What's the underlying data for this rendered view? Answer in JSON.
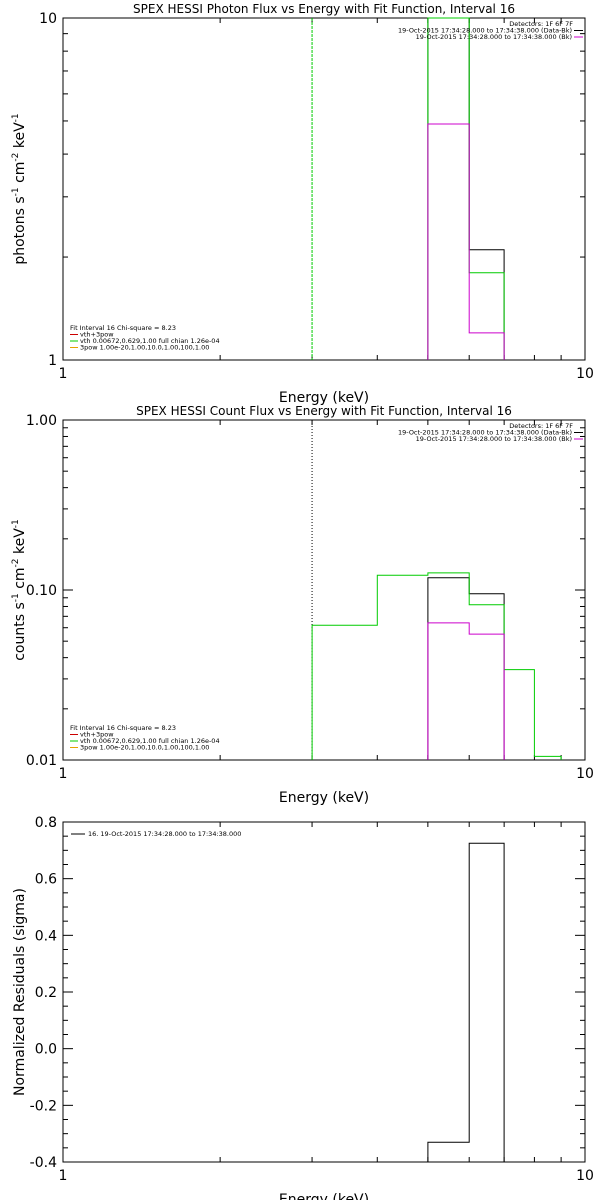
{
  "colors": {
    "black": "#000000",
    "magenta": "#cc00cc",
    "green": "#00cc00",
    "orange": "#e6a000",
    "red": "#cc0000"
  },
  "chart_data": [
    {
      "type": "line",
      "title": "SPEX HESSI Photon Flux vs Energy with Fit Function, Interval 16",
      "xlabel": "Energy (keV)",
      "ylabel": {
        "base": "photons s",
        "sup1": "-1",
        "mid1": " cm",
        "sup2": "-2",
        "mid2": " keV",
        "sup3": "-1"
      },
      "xscale": "log",
      "yscale": "log",
      "xlim": [
        1,
        10
      ],
      "ylim": [
        1,
        10
      ],
      "xticklabels": [
        {
          "v": 1,
          "t": "1"
        },
        {
          "v": 10,
          "t": "10"
        }
      ],
      "yticklabels": [
        {
          "v": 1,
          "t": "1"
        },
        {
          "v": 10,
          "t": "10"
        }
      ],
      "legend_topright": {
        "header": "Detectors: 1F 6F 7F",
        "entries": [
          {
            "text": "19-Oct-2015 17:34:28.000 to 17:34:38.000 (Data-Bk)",
            "color": "#000000"
          },
          {
            "text": "19-Oct-2015 17:34:28.000 to 17:34:38.000 (Bk)",
            "color": "#cc00cc"
          }
        ]
      },
      "legend_bottomleft": {
        "header": "Fit Interval 16    Chi-square = 8.23",
        "entries": [
          {
            "text": "vth+3pow",
            "color": "#cc0000"
          },
          {
            "text": "vth 0.00672,0.629,1.00   full chian 1.26e-04",
            "color": "#00cc00"
          },
          {
            "text": "3pow 1.00e-20,1.00,10.0,1.00,100,1.00",
            "color": "#e6a000"
          }
        ]
      },
      "vline": {
        "x": 3.0,
        "color": "#00cc00",
        "style": "dashed"
      },
      "series": [
        {
          "color": "#000000",
          "edges": [
            5.0,
            6.0,
            7.0
          ],
          "values": [
            10.5,
            2.1
          ]
        },
        {
          "color": "#00cc00",
          "edges": [
            5.0,
            6.0,
            7.0
          ],
          "values": [
            10.0,
            1.8
          ]
        },
        {
          "color": "#cc00cc",
          "edges": [
            5.0,
            6.0,
            7.0
          ],
          "values": [
            4.9,
            1.2
          ]
        }
      ]
    },
    {
      "type": "line",
      "title": "SPEX HESSI Count Flux vs Energy with Fit Function, Interval 16",
      "xlabel": "Energy (keV)",
      "ylabel": {
        "base": "counts s",
        "sup1": "-1",
        "mid1": " cm",
        "sup2": "-2",
        "mid2": " keV",
        "sup3": "-1"
      },
      "xscale": "log",
      "yscale": "log",
      "xlim": [
        1,
        10
      ],
      "ylim": [
        0.01,
        1.0
      ],
      "xticklabels": [
        {
          "v": 1,
          "t": "1"
        },
        {
          "v": 10,
          "t": "10"
        }
      ],
      "yticklabels": [
        {
          "v": 0.01,
          "t": "0.01"
        },
        {
          "v": 0.1,
          "t": "0.10"
        },
        {
          "v": 1.0,
          "t": "1.00"
        }
      ],
      "legend_topright": {
        "header": "Detectors: 1F 6F 7F",
        "entries": [
          {
            "text": "19-Oct-2015 17:34:28.000 to 17:34:38.000 (Data-Bk)",
            "color": "#000000"
          },
          {
            "text": "19-Oct-2015 17:34:28.000 to 17:34:38.000 (Bk)",
            "color": "#cc00cc"
          }
        ]
      },
      "legend_bottomleft": {
        "header": "Fit Interval 16    Chi-square = 8.23",
        "entries": [
          {
            "text": "vth+3pow",
            "color": "#cc0000"
          },
          {
            "text": "vth 0.00672,0.629,1.00   full chian 1.26e-04",
            "color": "#00cc00"
          },
          {
            "text": "3pow 1.00e-20,1.00,10.0,1.00,100,1.00",
            "color": "#e6a000"
          }
        ]
      },
      "vline": {
        "x": 3.0,
        "color": "#000000",
        "style": "dotted"
      },
      "series": [
        {
          "color": "#000000",
          "edges": [
            5.0,
            6.0,
            7.0
          ],
          "values": [
            0.118,
            0.095
          ]
        },
        {
          "color": "#00cc00",
          "edges": [
            3.0,
            4.0,
            5.0,
            6.0,
            7.0,
            8.0,
            9.0
          ],
          "values": [
            0.062,
            0.122,
            0.126,
            0.082,
            0.034,
            0.0105
          ]
        },
        {
          "color": "#cc00cc",
          "edges": [
            5.0,
            6.0,
            7.0
          ],
          "values": [
            0.064,
            0.055
          ]
        }
      ]
    },
    {
      "type": "line",
      "title": "",
      "xlabel": "Energy (keV)",
      "ylabel": {
        "base": "Normalized Residuals (sigma)"
      },
      "xscale": "log",
      "yscale": "linear",
      "xlim": [
        1,
        10
      ],
      "ylim": [
        -0.4,
        0.8
      ],
      "xticklabels": [
        {
          "v": 1,
          "t": "1"
        },
        {
          "v": 10,
          "t": "10"
        }
      ],
      "yticklabels": [
        {
          "v": -0.4,
          "t": "-0.4"
        },
        {
          "v": -0.2,
          "t": "-0.2"
        },
        {
          "v": 0.0,
          "t": "0.0"
        },
        {
          "v": 0.2,
          "t": "0.2"
        },
        {
          "v": 0.4,
          "t": "0.4"
        },
        {
          "v": 0.6,
          "t": "0.6"
        },
        {
          "v": 0.8,
          "t": "0.8"
        }
      ],
      "legend_topleft": {
        "entries": [
          {
            "text": "16. 19-Oct-2015 17:34:28.000 to 17:34:38.000",
            "color": "#000000"
          }
        ]
      },
      "series": [
        {
          "color": "#000000",
          "edges": [
            5.0,
            6.0,
            7.0
          ],
          "values": [
            -0.33,
            0.725
          ]
        }
      ]
    }
  ]
}
